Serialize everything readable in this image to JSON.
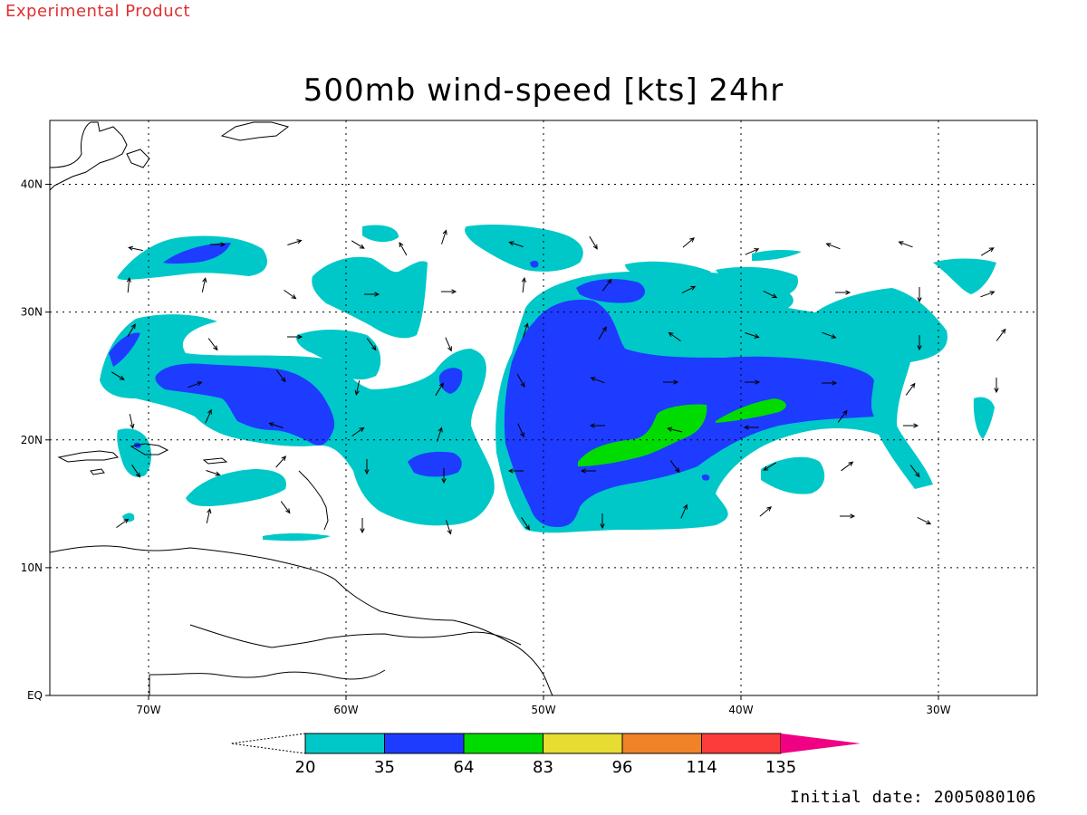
{
  "header": {
    "banner": "Experimental Product",
    "title": "500mb wind-speed [kts] 24hr"
  },
  "footer": {
    "initial_date": "Initial date: 2005080106"
  },
  "map": {
    "lon_range": [
      -75,
      -25
    ],
    "lat_range": [
      0,
      45
    ],
    "lon_ticks": [
      {
        "value": -70,
        "label": "70W"
      },
      {
        "value": -60,
        "label": "60W"
      },
      {
        "value": -50,
        "label": "50W"
      },
      {
        "value": -40,
        "label": "40W"
      },
      {
        "value": -30,
        "label": "30W"
      }
    ],
    "lat_ticks": [
      {
        "value": 40,
        "label": "40N"
      },
      {
        "value": 30,
        "label": "30N"
      },
      {
        "value": 20,
        "label": "20N"
      },
      {
        "value": 10,
        "label": "10N"
      },
      {
        "value": 0,
        "label": "EQ"
      }
    ],
    "grid": "dotted"
  },
  "legend": {
    "levels": [
      "20",
      "35",
      "64",
      "83",
      "96",
      "114",
      "135"
    ],
    "colors": [
      "#00c8c8",
      "#1e3cff",
      "#00dc00",
      "#e6dc32",
      "#f08228",
      "#fa3c3c",
      "#f00082"
    ]
  }
}
